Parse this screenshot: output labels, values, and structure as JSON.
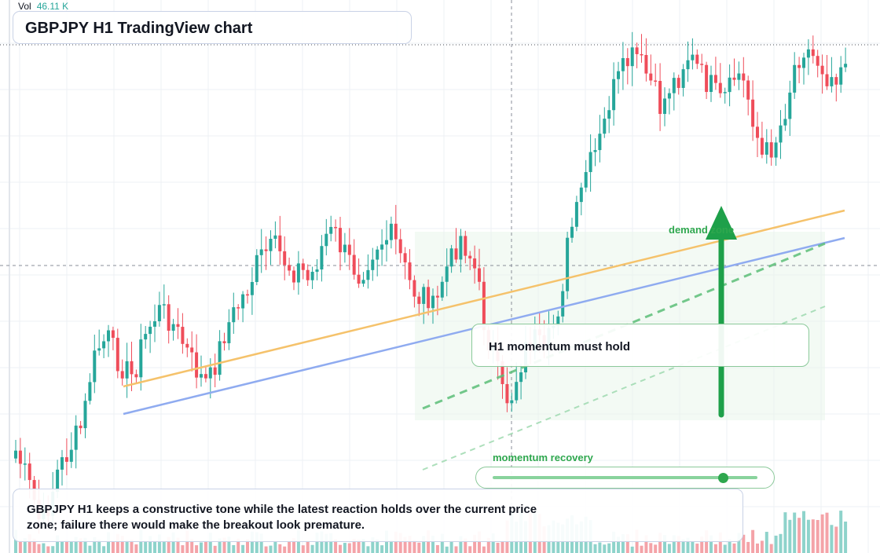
{
  "title": "GBPJPY H1 TradingView chart",
  "volume_legend": {
    "label": "Vol",
    "value": "46.11 K"
  },
  "annotations": {
    "note": "H1 momentum must hold",
    "demand_label": "demand zone",
    "momentum_label": "momentum recovery",
    "slider_level": 0.87
  },
  "summary": "GBPJPY H1 keeps a constructive tone while the latest reaction holds over the current price zone; failure there would make the breakout look premature.",
  "colors": {
    "up": "#26a69a",
    "down": "#ef4d5a",
    "vol_up": "#8ed3cb",
    "vol_down": "#f4a3a8",
    "orange_line": "#f5c26b",
    "blue_line": "#8fabf0",
    "green": "#2ea74e",
    "grid": "#eef0f4"
  },
  "chart_data": {
    "type": "candlestick",
    "price_seed": [
      574,
      600,
      630,
      670,
      640,
      600,
      580,
      560,
      540,
      470,
      440,
      430,
      455,
      470,
      480,
      440,
      415,
      395,
      400,
      418,
      438,
      460,
      480,
      490,
      455,
      420,
      400,
      380,
      360,
      330,
      320,
      315,
      330,
      345,
      340,
      360,
      330,
      300,
      295,
      320,
      335,
      350,
      330,
      310,
      305,
      300,
      330,
      360,
      380,
      370,
      400,
      350,
      330,
      300,
      320,
      350,
      420,
      450,
      500,
      510,
      470,
      440,
      430,
      455,
      420,
      380,
      300,
      270,
      220,
      200,
      170,
      120,
      100,
      80,
      70,
      90,
      110,
      140,
      110,
      100,
      70,
      80,
      100,
      110,
      130,
      120,
      90,
      110,
      150,
      200,
      190,
      170,
      130,
      80,
      60,
      70,
      80,
      100,
      90,
      70
    ]
  }
}
